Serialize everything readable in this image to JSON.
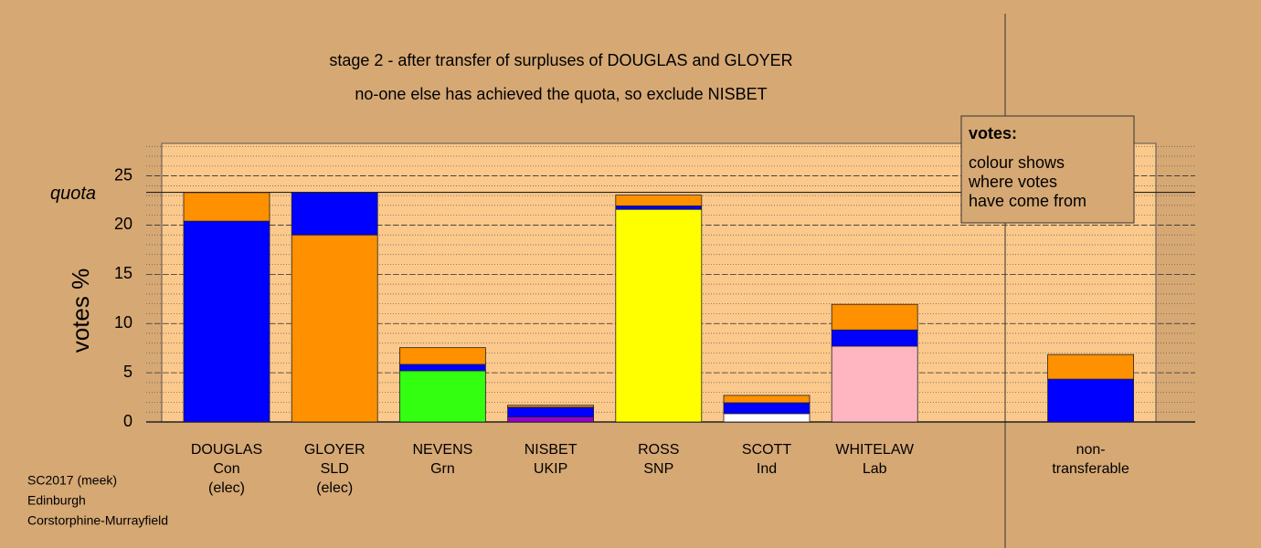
{
  "chart_data": {
    "type": "stacked-bar",
    "title": "stage 2 - after transfer of surpluses of DOUGLAS and GLOYER",
    "subtitle": "no-one else has achieved the quota, so exclude NISBET",
    "y_label": "votes %",
    "categories": [
      [
        "DOUGLAS",
        "Con",
        "(elec)"
      ],
      [
        "GLOYER",
        "SLD",
        "(elec)"
      ],
      [
        "NEVENS",
        "Grn"
      ],
      [
        "NISBET",
        "UKIP"
      ],
      [
        "ROSS",
        "SNP"
      ],
      [
        "SCOTT",
        "Ind"
      ],
      [
        "WHITELAW",
        "Lab"
      ],
      null,
      [
        "non-",
        "transferable"
      ]
    ],
    "series": [
      {
        "colors": [
          "#0000ff",
          "#ff9000",
          "#33ff11",
          "#9900cc",
          "#ffff00",
          "#ffffff",
          "#ffb6c1",
          null,
          null
        ],
        "values": [
          20.4,
          19.0,
          5.2,
          0.5,
          21.6,
          0.85,
          7.7,
          null,
          null
        ]
      },
      {
        "color": "#0000ff",
        "values": [
          null,
          4.3,
          0.65,
          1.0,
          0.35,
          1.1,
          1.65,
          null,
          4.35
        ]
      },
      {
        "color": "#ff9000",
        "values": [
          2.9,
          null,
          1.7,
          0.2,
          1.1,
          0.75,
          2.6,
          null,
          2.5
        ]
      }
    ],
    "quota": {
      "label": "quota",
      "value": 23.33
    },
    "ylim": [
      0,
      28.3
    ],
    "yticks": [
      0,
      5,
      10,
      15,
      20,
      25
    ],
    "grid": true,
    "legend": {
      "title": "votes:",
      "lines": [
        "colour shows",
        "where votes",
        "have come from"
      ]
    },
    "footnote": [
      "SC2017 (meek)",
      "Edinburgh",
      "Corstorphine-Murrayfield"
    ]
  }
}
